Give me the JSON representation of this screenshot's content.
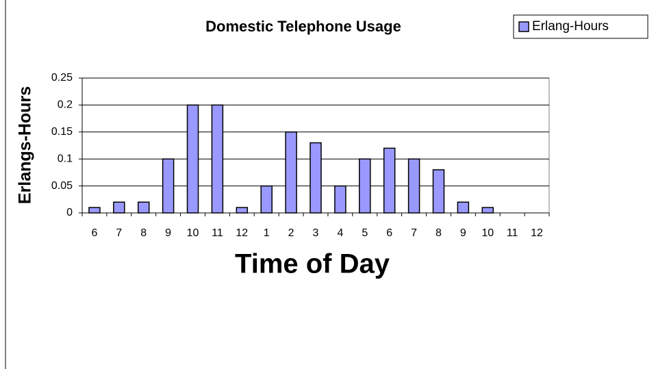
{
  "chart_data": {
    "type": "bar",
    "title": "Domestic Telephone Usage",
    "x_label": "Time of Day",
    "y_label": "Erlangs-Hours",
    "categories": [
      "6",
      "7",
      "8",
      "9",
      "10",
      "11",
      "12",
      "1",
      "2",
      "3",
      "4",
      "5",
      "6",
      "7",
      "8",
      "9",
      "10",
      "11",
      "12"
    ],
    "series": [
      {
        "name": "Erlang-Hours",
        "color": "#9999ff",
        "values": [
          0.01,
          0.02,
          0.02,
          0.1,
          0.2,
          0.2,
          0.01,
          0.05,
          0.15,
          0.13,
          0.05,
          0.1,
          0.12,
          0.1,
          0.08,
          0.02,
          0.01,
          0,
          0
        ]
      }
    ],
    "ylim": [
      0,
      0.25
    ],
    "yticks": [
      0,
      0.05,
      0.1,
      0.15,
      0.2,
      0.25
    ],
    "grid": true,
    "legend": "top-right"
  }
}
